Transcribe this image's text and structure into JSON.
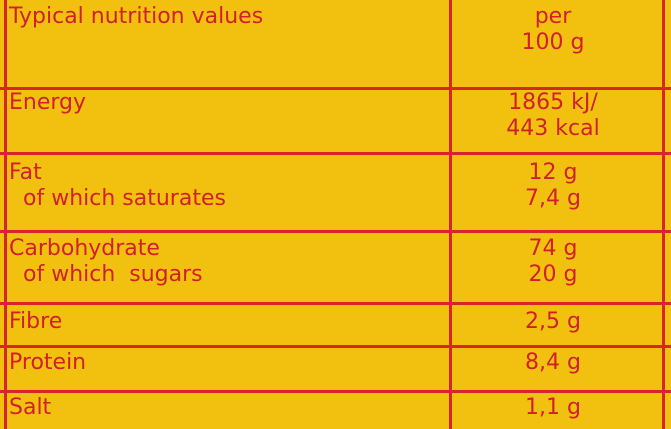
{
  "table": {
    "header": {
      "label": "Typical nutrition values",
      "value": [
        "per",
        "100 g"
      ]
    },
    "rows": [
      {
        "label": [
          "Energy"
        ],
        "value": [
          "1865 kJ/",
          "443 kcal"
        ]
      },
      {
        "label": [
          "Fat",
          "of which saturates"
        ],
        "value": [
          "12 g",
          "7,4 g"
        ]
      },
      {
        "label": [
          "Carbohydrate",
          "of which  sugars"
        ],
        "value": [
          "74 g",
          "20 g"
        ]
      },
      {
        "label": [
          "Fibre"
        ],
        "value": [
          "2,5 g"
        ]
      },
      {
        "label": [
          "Protein"
        ],
        "value": [
          "8,4 g"
        ]
      },
      {
        "label": [
          "Salt"
        ],
        "value": [
          "1,1 g"
        ]
      }
    ]
  }
}
